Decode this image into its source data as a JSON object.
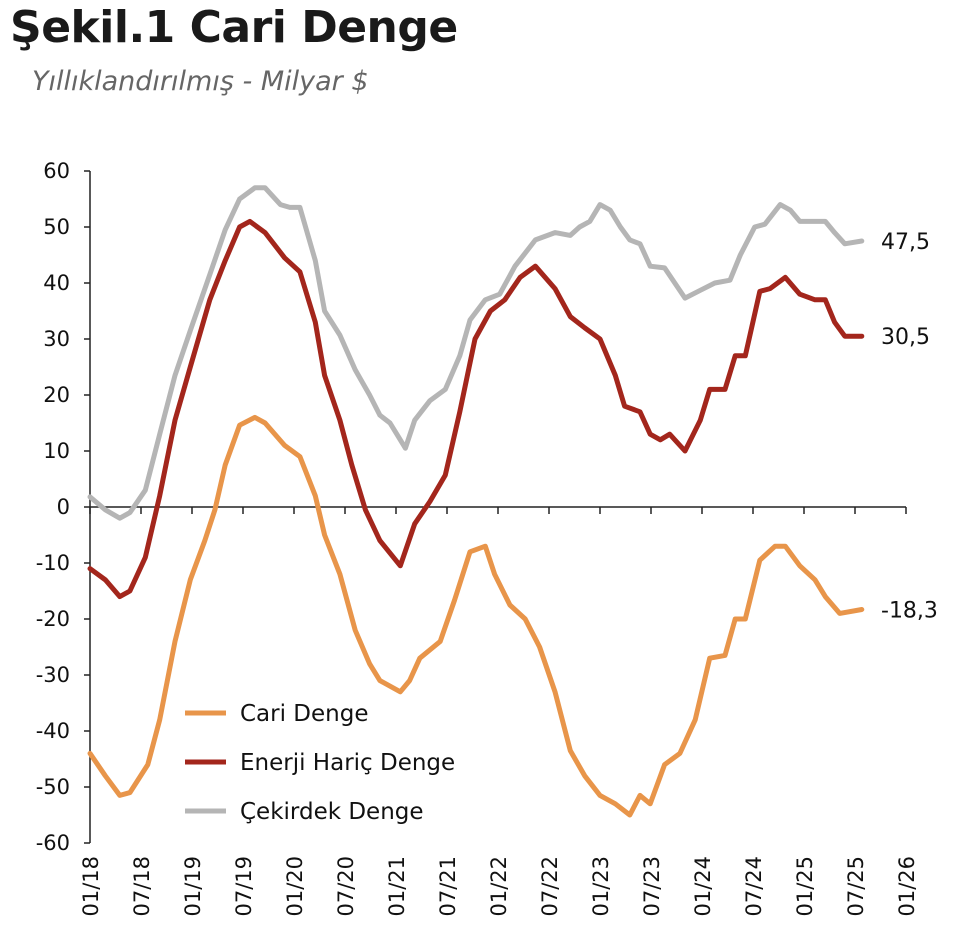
{
  "chart_data": {
    "type": "line",
    "title": "Şekil.1 Cari Denge",
    "subtitle": "Yıllıklandırılmış - Milyar $",
    "xlabel": "",
    "ylabel": "",
    "ylim": [
      -60,
      60
    ],
    "yticks": [
      "60",
      "50",
      "40",
      "30",
      "20",
      "10",
      "0",
      "-10",
      "-20",
      "-30",
      "-40",
      "-50",
      "-60"
    ],
    "xticks": [
      "01/18",
      "07/18",
      "01/19",
      "07/19",
      "01/20",
      "07/20",
      "01/21",
      "07/21",
      "01/22",
      "07/22",
      "01/23",
      "07/23",
      "01/24",
      "07/24",
      "01/25",
      "07/25",
      "01/26"
    ],
    "x_unit": "months since 01/18",
    "legend_position": "bottom-left",
    "series": [
      {
        "name": "Cari Denge",
        "color": "#E8954A",
        "end_label": "-18,3",
        "points": [
          [
            0,
            -44
          ],
          [
            1.8,
            -48
          ],
          [
            3.5,
            -51.5
          ],
          [
            4.7,
            -51
          ],
          [
            6.8,
            -46
          ],
          [
            8.2,
            -38
          ],
          [
            10,
            -24
          ],
          [
            11.8,
            -13
          ],
          [
            13.5,
            -6
          ],
          [
            14.7,
            -0.5
          ],
          [
            15.9,
            7.5
          ],
          [
            17.6,
            14.6
          ],
          [
            19.4,
            16
          ],
          [
            20.6,
            15
          ],
          [
            22.9,
            11
          ],
          [
            24.7,
            9
          ],
          [
            26.5,
            2
          ],
          [
            27.6,
            -5
          ],
          [
            29.4,
            -12
          ],
          [
            31.2,
            -22
          ],
          [
            32.9,
            -28
          ],
          [
            34.1,
            -31
          ],
          [
            36.5,
            -33
          ],
          [
            37.6,
            -31
          ],
          [
            38.8,
            -27
          ],
          [
            41.2,
            -24
          ],
          [
            42.9,
            -16.6
          ],
          [
            44.7,
            -8
          ],
          [
            46.5,
            -7
          ],
          [
            47.6,
            -12
          ],
          [
            49.4,
            -17.5
          ],
          [
            51.2,
            -20
          ],
          [
            52.9,
            -25
          ],
          [
            54.7,
            -33
          ],
          [
            56.5,
            -43.5
          ],
          [
            58.2,
            -48
          ],
          [
            60,
            -51.5
          ],
          [
            61.8,
            -53
          ],
          [
            63.5,
            -55
          ],
          [
            64.7,
            -51.5
          ],
          [
            65.9,
            -53
          ],
          [
            67.6,
            -46
          ],
          [
            69.4,
            -44
          ],
          [
            71.2,
            -38
          ],
          [
            72.9,
            -27
          ],
          [
            74.7,
            -26.5
          ],
          [
            75.9,
            -20
          ],
          [
            77.1,
            -20
          ],
          [
            78.8,
            -9.5
          ],
          [
            80.6,
            -7
          ],
          [
            81.8,
            -7
          ],
          [
            83.5,
            -10.5
          ],
          [
            85.3,
            -13
          ],
          [
            86.5,
            -16
          ],
          [
            88.2,
            -19
          ],
          [
            90.8,
            -18.3
          ]
        ]
      },
      {
        "name": "Enerji Hariç Denge",
        "color": "#A3261C",
        "end_label": "30,5",
        "points": [
          [
            0,
            -11
          ],
          [
            1.8,
            -13
          ],
          [
            3.5,
            -16
          ],
          [
            4.7,
            -15
          ],
          [
            6.5,
            -9
          ],
          [
            8.2,
            2
          ],
          [
            10,
            15.5
          ],
          [
            11.8,
            25
          ],
          [
            14.1,
            37
          ],
          [
            15.9,
            44
          ],
          [
            17.6,
            50
          ],
          [
            18.8,
            51
          ],
          [
            20.6,
            49
          ],
          [
            22.9,
            44.5
          ],
          [
            24.7,
            42
          ],
          [
            26.5,
            33
          ],
          [
            27.6,
            23.5
          ],
          [
            29.4,
            15.5
          ],
          [
            30.8,
            7.5
          ],
          [
            32.4,
            -0.5
          ],
          [
            34.1,
            -6
          ],
          [
            36.5,
            -10.5
          ],
          [
            38.2,
            -3
          ],
          [
            40,
            1
          ],
          [
            41.8,
            5.7
          ],
          [
            43.5,
            17
          ],
          [
            45.3,
            30
          ],
          [
            47.1,
            35
          ],
          [
            48.8,
            37
          ],
          [
            50.6,
            41
          ],
          [
            52.4,
            43
          ],
          [
            54.7,
            39
          ],
          [
            56.5,
            34
          ],
          [
            58.2,
            32
          ],
          [
            60,
            30
          ],
          [
            61.8,
            23.5
          ],
          [
            62.9,
            18
          ],
          [
            64.7,
            17
          ],
          [
            65.9,
            13
          ],
          [
            67.1,
            12
          ],
          [
            68.2,
            13
          ],
          [
            70,
            10
          ],
          [
            71.8,
            15.5
          ],
          [
            72.9,
            21
          ],
          [
            74.7,
            21
          ],
          [
            75.9,
            27
          ],
          [
            77.1,
            27
          ],
          [
            78.8,
            38.5
          ],
          [
            80,
            39
          ],
          [
            81.8,
            41
          ],
          [
            83.5,
            38
          ],
          [
            85.3,
            37
          ],
          [
            86.5,
            37
          ],
          [
            87.6,
            33
          ],
          [
            88.8,
            30.5
          ],
          [
            90.8,
            30.5
          ]
        ]
      },
      {
        "name": "Çekirdek Denge",
        "color": "#B5B5B5",
        "end_label": "47,5",
        "points": [
          [
            0,
            1.8
          ],
          [
            1.8,
            -0.5
          ],
          [
            3.5,
            -2
          ],
          [
            4.7,
            -1
          ],
          [
            6.5,
            3
          ],
          [
            8.2,
            13
          ],
          [
            10,
            23.5
          ],
          [
            11.8,
            31.5
          ],
          [
            14.1,
            41.5
          ],
          [
            15.9,
            49.5
          ],
          [
            17.6,
            55
          ],
          [
            19.4,
            57
          ],
          [
            20.6,
            57
          ],
          [
            22.4,
            54
          ],
          [
            23.5,
            53.5
          ],
          [
            24.7,
            53.5
          ],
          [
            26.5,
            44
          ],
          [
            27.6,
            35
          ],
          [
            29.4,
            30.7
          ],
          [
            31.2,
            24.5
          ],
          [
            32.9,
            20
          ],
          [
            34.1,
            16.4
          ],
          [
            35.3,
            15
          ],
          [
            37.1,
            10.5
          ],
          [
            38.2,
            15.5
          ],
          [
            40,
            19
          ],
          [
            41.8,
            21
          ],
          [
            43.5,
            27
          ],
          [
            44.7,
            33.4
          ],
          [
            46.5,
            37
          ],
          [
            48.2,
            38
          ],
          [
            50,
            43
          ],
          [
            52.4,
            47.7
          ],
          [
            54.7,
            49
          ],
          [
            56.5,
            48.5
          ],
          [
            57.6,
            50
          ],
          [
            58.8,
            51
          ],
          [
            60,
            54
          ],
          [
            61.2,
            53
          ],
          [
            62.4,
            50
          ],
          [
            63.5,
            47.7
          ],
          [
            64.7,
            47
          ],
          [
            65.9,
            43
          ],
          [
            67.6,
            42.7
          ],
          [
            68.8,
            40
          ],
          [
            70,
            37.3
          ],
          [
            71.8,
            38.7
          ],
          [
            73.5,
            40
          ],
          [
            75.3,
            40.5
          ],
          [
            76.5,
            45
          ],
          [
            78.2,
            50
          ],
          [
            79.4,
            50.5
          ],
          [
            81.2,
            54
          ],
          [
            82.4,
            53
          ],
          [
            83.5,
            51
          ],
          [
            85.3,
            51
          ],
          [
            86.5,
            51
          ],
          [
            87.6,
            49
          ],
          [
            88.8,
            47
          ],
          [
            90.8,
            47.5
          ]
        ]
      }
    ]
  }
}
